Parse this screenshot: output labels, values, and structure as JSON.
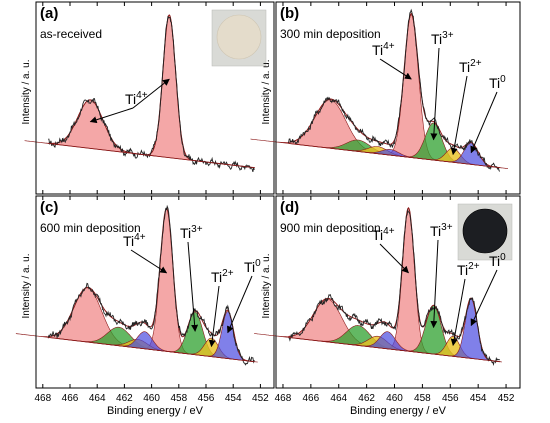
{
  "figure": {
    "xlabel": "Binding energy / eV",
    "ylabel": "Intensity / a. u.",
    "xticks": [
      468,
      466,
      464,
      462,
      460,
      458,
      456,
      454,
      452
    ],
    "xlim": [
      468.5,
      451.0
    ],
    "colors": {
      "ti4": "#f08a8a",
      "ti3": "#2fa02f",
      "ti2": "#e8c020",
      "ti0": "#4a4ae0",
      "sat_violet": "#7a3ab8",
      "sat_olive": "#7a8a20",
      "envelope": "#8b1a1a",
      "raw": "#222222",
      "background_line": "#8b1a1a",
      "sample_light": "#e4dccb",
      "sample_dark": "#1c1e22"
    }
  },
  "chart_data": [
    {
      "type": "line",
      "panel": "(a)",
      "label": "as-received",
      "inset": "light",
      "peak_labels": [
        "Ti4+"
      ],
      "series": [
        {
          "name": "Ti4+",
          "peaks": [
            {
              "center": 458.7,
              "height": 1.0,
              "fwhm": 1.1
            },
            {
              "center": 464.5,
              "height": 0.34,
              "fwhm": 2.2
            }
          ]
        }
      ]
    },
    {
      "type": "line",
      "panel": "(b)",
      "label": "300 min deposition",
      "inset": "",
      "peak_labels": [
        "Ti4+",
        "Ti3+",
        "Ti2+",
        "Ti0"
      ],
      "series": [
        {
          "name": "Ti4+",
          "peaks": [
            {
              "center": 458.8,
              "height": 1.0,
              "fwhm": 1.2
            },
            {
              "center": 464.6,
              "height": 0.34,
              "fwhm": 2.6
            }
          ]
        },
        {
          "name": "Ti3+",
          "peaks": [
            {
              "center": 457.2,
              "height": 0.26,
              "fwhm": 1.4
            },
            {
              "center": 462.6,
              "height": 0.08,
              "fwhm": 2.0
            }
          ]
        },
        {
          "name": "Ti2+",
          "peaks": [
            {
              "center": 455.8,
              "height": 0.1,
              "fwhm": 1.2
            },
            {
              "center": 461.2,
              "height": 0.05,
              "fwhm": 1.6
            }
          ]
        },
        {
          "name": "Ti0",
          "peaks": [
            {
              "center": 454.5,
              "height": 0.15,
              "fwhm": 1.2
            },
            {
              "center": 460.3,
              "height": 0.04,
              "fwhm": 1.4
            }
          ]
        }
      ]
    },
    {
      "type": "line",
      "panel": "(c)",
      "label": "600 min deposition",
      "inset": "",
      "peak_labels": [
        "Ti4+",
        "Ti3+",
        "Ti2+",
        "Ti0"
      ],
      "series": [
        {
          "name": "Ti4+",
          "peaks": [
            {
              "center": 458.9,
              "height": 1.0,
              "fwhm": 1.1
            },
            {
              "center": 464.7,
              "height": 0.38,
              "fwhm": 2.4
            }
          ]
        },
        {
          "name": "Ti3+",
          "peaks": [
            {
              "center": 456.8,
              "height": 0.3,
              "fwhm": 1.3
            },
            {
              "center": 462.4,
              "height": 0.13,
              "fwhm": 2.0
            }
          ]
        },
        {
          "name": "Ti2+",
          "peaks": [
            {
              "center": 455.6,
              "height": 0.13,
              "fwhm": 1.2
            },
            {
              "center": 461.0,
              "height": 0.06,
              "fwhm": 1.6
            }
          ]
        },
        {
          "name": "Ti0",
          "peaks": [
            {
              "center": 454.4,
              "height": 0.33,
              "fwhm": 1.0
            },
            {
              "center": 460.5,
              "height": 0.12,
              "fwhm": 1.3
            }
          ]
        }
      ]
    },
    {
      "type": "line",
      "panel": "(d)",
      "label": "900 min deposition",
      "inset": "dark",
      "peak_labels": [
        "Ti4+",
        "Ti3+",
        "Ti2+",
        "Ti0"
      ],
      "series": [
        {
          "name": "Ti4+",
          "peaks": [
            {
              "center": 459.0,
              "height": 1.0,
              "fwhm": 1.0
            },
            {
              "center": 464.8,
              "height": 0.3,
              "fwhm": 2.4
            }
          ]
        },
        {
          "name": "Ti3+",
          "peaks": [
            {
              "center": 457.2,
              "height": 0.34,
              "fwhm": 1.3
            },
            {
              "center": 462.6,
              "height": 0.14,
              "fwhm": 2.0
            }
          ]
        },
        {
          "name": "Ti2+",
          "peaks": [
            {
              "center": 455.8,
              "height": 0.14,
              "fwhm": 1.1
            },
            {
              "center": 461.2,
              "height": 0.08,
              "fwhm": 1.6
            }
          ]
        },
        {
          "name": "Ti0",
          "peaks": [
            {
              "center": 454.5,
              "height": 0.42,
              "fwhm": 1.0
            },
            {
              "center": 460.5,
              "height": 0.12,
              "fwhm": 1.3
            }
          ]
        }
      ]
    }
  ]
}
